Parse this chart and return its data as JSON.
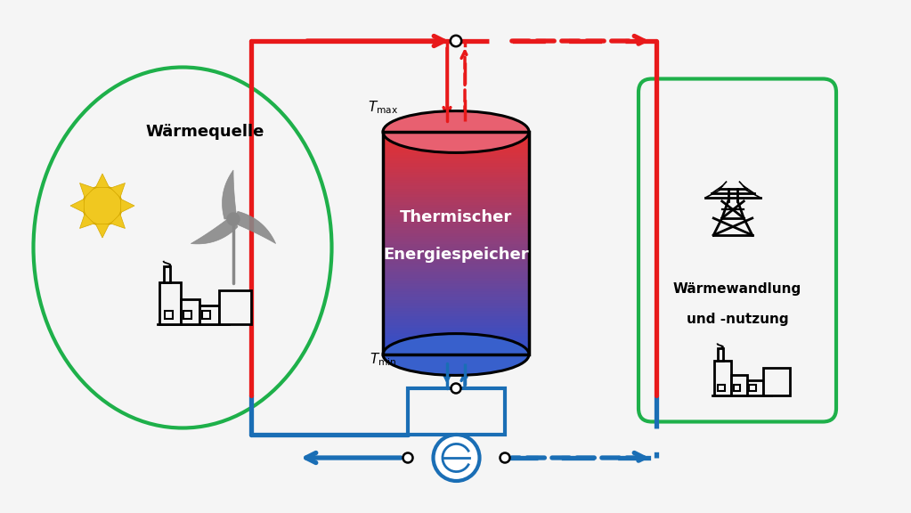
{
  "bg_color": "#f5f5f5",
  "red": "#e8191a",
  "blue": "#1a6eb5",
  "green": "#1eb04a",
  "gray": "#888888",
  "left_label": "Wärmequelle",
  "right_label_line1": "Wärmewandlung",
  "right_label_line2": "und -nutzung",
  "tank_text_line1": "Thermischer",
  "tank_text_line2": "Energiespeicher",
  "t_max_label": "T",
  "t_max_sub": "max",
  "t_min_label": "T",
  "t_min_sub": "min"
}
